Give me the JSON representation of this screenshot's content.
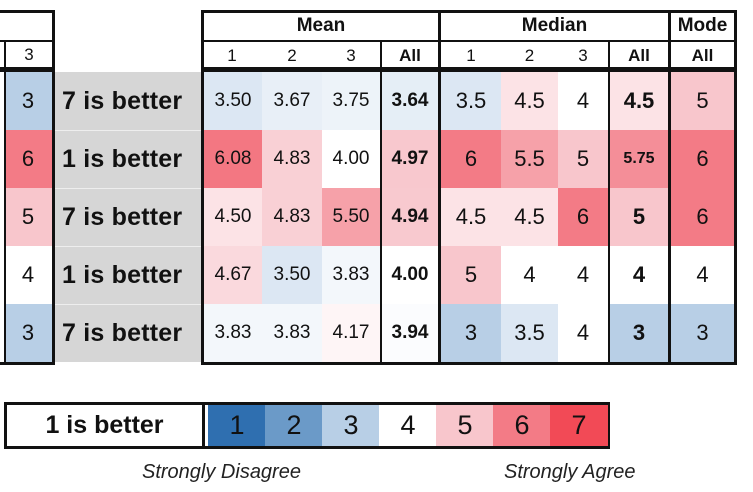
{
  "header": {
    "groups": [
      "Mean",
      "Median",
      "Mode"
    ],
    "left_partial_sub": "3",
    "mean_sub": [
      "1",
      "2",
      "3",
      "All"
    ],
    "median_sub": [
      "1",
      "2",
      "3",
      "All"
    ],
    "mode_sub": [
      "All"
    ]
  },
  "rows": [
    {
      "left": "3",
      "label": "7 is better",
      "mean": [
        "3.50",
        "3.67",
        "3.75",
        "3.64"
      ],
      "median": [
        "3.5",
        "4.5",
        "4",
        "4.5"
      ],
      "mode": "5"
    },
    {
      "left": "6",
      "label": "1 is better",
      "mean": [
        "6.08",
        "4.83",
        "4.00",
        "4.97"
      ],
      "median": [
        "6",
        "5.5",
        "5",
        "5.75"
      ],
      "mode": "6"
    },
    {
      "left": "5",
      "label": "7 is better",
      "mean": [
        "4.50",
        "4.83",
        "5.50",
        "4.94"
      ],
      "median": [
        "4.5",
        "4.5",
        "6",
        "5"
      ],
      "mode": "6"
    },
    {
      "left": "4",
      "label": "1 is better",
      "mean": [
        "4.67",
        "3.50",
        "3.83",
        "4.00"
      ],
      "median": [
        "5",
        "4",
        "4",
        "4"
      ],
      "mode": "4"
    },
    {
      "left": "3",
      "label": "7 is better",
      "mean": [
        "3.83",
        "3.83",
        "4.17",
        "3.94"
      ],
      "median": [
        "3",
        "3.5",
        "4",
        "3"
      ],
      "mode": "3"
    }
  ],
  "legend": {
    "label": "1 is better",
    "scale": [
      "1",
      "2",
      "3",
      "4",
      "5",
      "6",
      "7"
    ],
    "left_caption": "Strongly Disagree",
    "right_caption": "Strongly Agree"
  },
  "colors": {
    "scale": [
      "#2f6fb0",
      "#6b9ac8",
      "#b8cfe6",
      "#ffffff",
      "#f8c6cc",
      "#f37b86",
      "#f24a56"
    ],
    "row_label_bg": "#d6d6d6",
    "border": "#111111"
  }
}
